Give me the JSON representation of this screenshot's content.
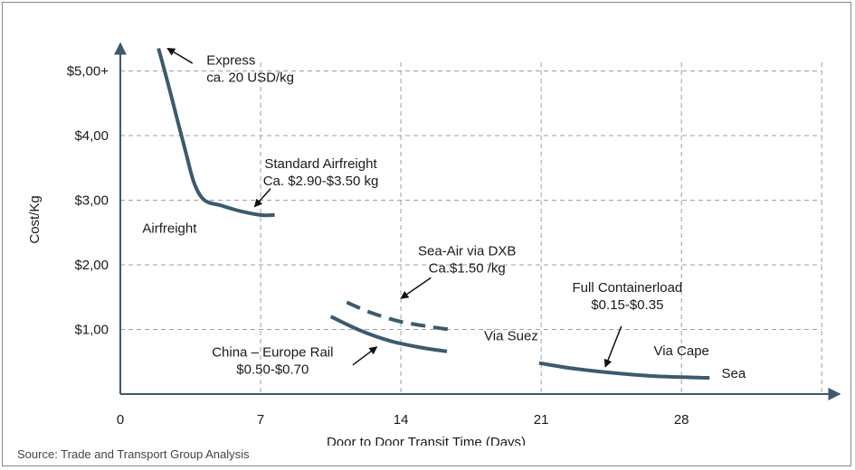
{
  "source_note": "Source: Trade and Transport Group Analysis",
  "colors": {
    "line": "#3d5a6c",
    "axis": "#3d5a6c",
    "grid": "#a0a0a0",
    "text": "#1a1a1a"
  },
  "chart_data": {
    "type": "line",
    "xlabel": "Door to Door Transit Time (Days)",
    "ylabel": "Cost/Kg",
    "xlim": [
      0,
      35
    ],
    "ylim": [
      0,
      5.4
    ],
    "x_ticks": [
      0,
      7,
      14,
      21,
      28
    ],
    "x_tick_labels": [
      "0",
      "7",
      "14",
      "21",
      "28"
    ],
    "y_ticks": [
      1,
      2,
      3,
      4,
      5
    ],
    "y_tick_labels": [
      "$1,00",
      "$2,00",
      "$3,00",
      "$4,00",
      "$5,00+"
    ],
    "grid": "dashed",
    "series": [
      {
        "style": "solid",
        "x": [
          1.9,
          2.3,
          2.8,
          3.3,
          3.7,
          4.2,
          5.0,
          6.0,
          7.0,
          7.7
        ],
        "y": [
          5.35,
          4.9,
          4.3,
          3.7,
          3.25,
          3.0,
          2.92,
          2.83,
          2.77,
          2.77
        ]
      },
      {
        "style": "dashed",
        "x": [
          11.3,
          12.5,
          14.0,
          15.5,
          16.4
        ],
        "y": [
          1.42,
          1.26,
          1.12,
          1.04,
          1.0
        ]
      },
      {
        "style": "solid",
        "x": [
          10.5,
          12.0,
          13.5,
          15.0,
          16.3
        ],
        "y": [
          1.2,
          0.98,
          0.82,
          0.72,
          0.66
        ]
      },
      {
        "style": "solid",
        "x": [
          20.9,
          22.5,
          24.5,
          26.5,
          28.3,
          29.4
        ],
        "y": [
          0.48,
          0.4,
          0.33,
          0.28,
          0.26,
          0.25
        ]
      }
    ],
    "annotations": [
      {
        "lines": [
          "Express",
          "ca. 20 USD/kg"
        ],
        "x": 4.3,
        "y": 5.1,
        "anchor": "start",
        "arrow": {
          "from": [
            3.6,
            5.12
          ],
          "to": [
            2.35,
            5.35
          ]
        }
      },
      {
        "lines": [
          "Standard Airfreight",
          "Ca. $2.90-$3.50 kg"
        ],
        "x": 10.0,
        "y": 3.5,
        "anchor": "middle",
        "arrow": {
          "from": [
            7.5,
            3.18
          ],
          "to": [
            6.7,
            2.9
          ]
        }
      },
      {
        "lines": [
          "Airfreight"
        ],
        "x": 1.1,
        "y": 2.5,
        "anchor": "start"
      },
      {
        "lines": [
          "Sea-Air via DXB",
          "Ca.$1.50 /kg"
        ],
        "x": 17.3,
        "y": 2.15,
        "anchor": "middle",
        "arrow": {
          "from": [
            15.5,
            1.8
          ],
          "to": [
            14.0,
            1.48
          ]
        }
      },
      {
        "lines": [
          "China – Europe Rail",
          "$0.50-$0.70"
        ],
        "x": 7.6,
        "y": 0.58,
        "anchor": "middle",
        "arrow": {
          "from": [
            11.6,
            0.45
          ],
          "to": [
            12.8,
            0.73
          ]
        }
      },
      {
        "lines": [
          "Full Containerload",
          "$0.15-$0.35"
        ],
        "x": 25.3,
        "y": 1.58,
        "anchor": "middle",
        "arrow": {
          "from": [
            25.0,
            1.05
          ],
          "to": [
            24.2,
            0.42
          ]
        }
      },
      {
        "lines": [
          "Via Suez"
        ],
        "x": 19.5,
        "y": 0.83,
        "anchor": "middle"
      },
      {
        "lines": [
          "Via Cape"
        ],
        "x": 28.0,
        "y": 0.6,
        "anchor": "middle"
      },
      {
        "lines": [
          "Sea"
        ],
        "x": 30.0,
        "y": 0.25,
        "anchor": "start"
      }
    ]
  }
}
